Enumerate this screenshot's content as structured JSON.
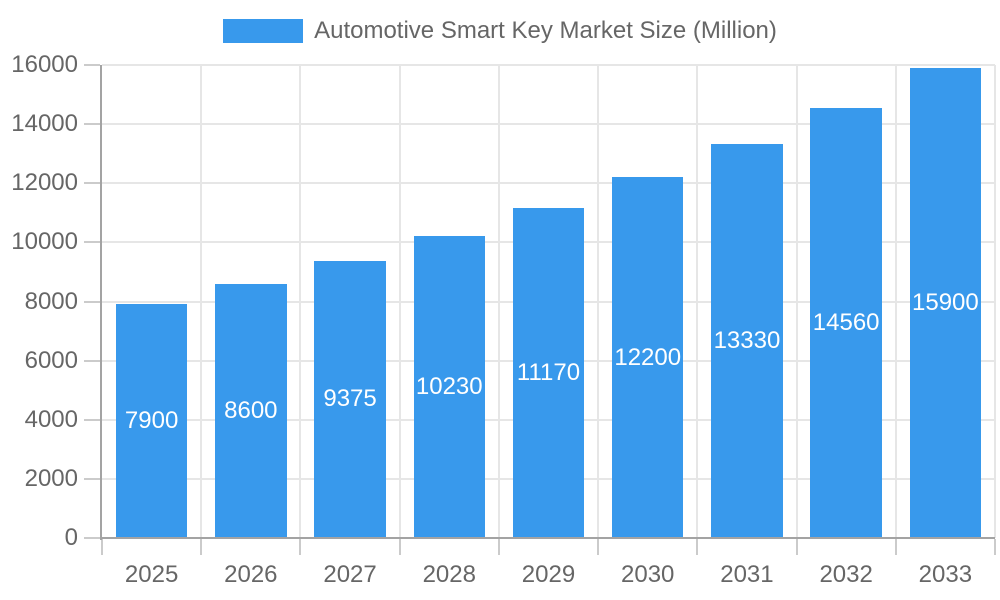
{
  "chart_data": {
    "type": "bar",
    "title": "Automotive Smart Key Market Size (Million)",
    "categories": [
      "2025",
      "2026",
      "2027",
      "2028",
      "2029",
      "2030",
      "2031",
      "2032",
      "2033"
    ],
    "values": [
      7900,
      8600,
      9375,
      10230,
      11170,
      12200,
      13330,
      14560,
      15900
    ],
    "ylim": [
      0,
      16000
    ],
    "ytick_step": 2000,
    "ytick_labels": [
      "0",
      "2000",
      "4000",
      "6000",
      "8000",
      "10000",
      "12000",
      "14000",
      "16000"
    ],
    "legend_position": "top",
    "grid": true,
    "bar_value_labels_shown": true,
    "colors": {
      "bar": "#3899EC",
      "bar_label": "#FFFFFF",
      "axis_text": "#666666",
      "grid_line": "#E6E6E6",
      "axis_line": "#A3A3A3",
      "tick_mark": "#CBCBCB"
    }
  }
}
